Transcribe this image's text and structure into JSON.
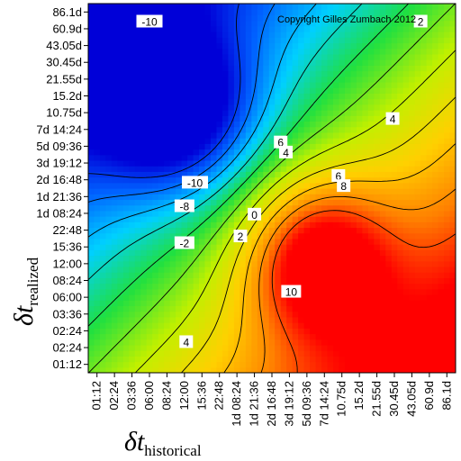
{
  "chart_data": {
    "type": "heatmap",
    "title": "",
    "copyright": "Copyright Gilles Zumbach 2012",
    "xlabel": {
      "symbol": "δt",
      "subscript": "historical"
    },
    "ylabel": {
      "symbol": "δt",
      "subscript": "realized"
    },
    "x_ticks": [
      "01:12",
      "02:24",
      "03:36",
      "06:00",
      "08:24",
      "12:00",
      "15:36",
      "22:48",
      "1d 08:24",
      "1d 21:36",
      "2d 16:48",
      "3d 19:12",
      "5d 09:36",
      "7d 14:24",
      "10.75d",
      "15.2d",
      "21.55d",
      "30.45d",
      "43.05d",
      "60.9d",
      "86.1d"
    ],
    "y_ticks_top_to_bottom": [
      "86.1d",
      "60.9d",
      "43.05d",
      "30.45d",
      "21.55d",
      "15.2d",
      "10.75d",
      "7d 14:24",
      "5d 09:36",
      "3d 19:12",
      "2d 16:48",
      "1d 21:36",
      "1d 08:24",
      "22:48",
      "15:36",
      "12:00",
      "08:24",
      "06:00",
      "03:36",
      "02:24",
      "02:24",
      "01:12"
    ],
    "contour_levels": [
      -10,
      -8,
      -6,
      -4,
      -2,
      0,
      2,
      4,
      6,
      8,
      10
    ],
    "contour_labels": [
      {
        "text": "-10",
        "x": 3.0,
        "y": 20.4
      },
      {
        "text": "2",
        "x": 18.5,
        "y": 20.4
      },
      {
        "text": "4",
        "x": 16.9,
        "y": 14.6
      },
      {
        "text": "6",
        "x": 13.8,
        "y": 11.2
      },
      {
        "text": "6",
        "x": 10.5,
        "y": 13.2
      },
      {
        "text": "4",
        "x": 10.8,
        "y": 12.6
      },
      {
        "text": "-10",
        "x": 5.6,
        "y": 10.8
      },
      {
        "text": "-8",
        "x": 5.0,
        "y": 9.4
      },
      {
        "text": "0",
        "x": 9.0,
        "y": 8.9
      },
      {
        "text": "8",
        "x": 14.1,
        "y": 10.6
      },
      {
        "text": "2",
        "x": 8.2,
        "y": 7.6
      },
      {
        "text": "-2",
        "x": 5.0,
        "y": 7.2
      },
      {
        "text": "10",
        "x": 11.1,
        "y": 4.3
      },
      {
        "text": "4",
        "x": 5.1,
        "y": 1.3
      }
    ],
    "color_scale": {
      "min": -12,
      "max": 12,
      "colors": [
        "#0000d8",
        "#0060ff",
        "#00d0ff",
        "#20e040",
        "#c0f000",
        "#ffd000",
        "#ff8000",
        "#ff0000"
      ]
    },
    "grid": false,
    "legend": "none"
  }
}
